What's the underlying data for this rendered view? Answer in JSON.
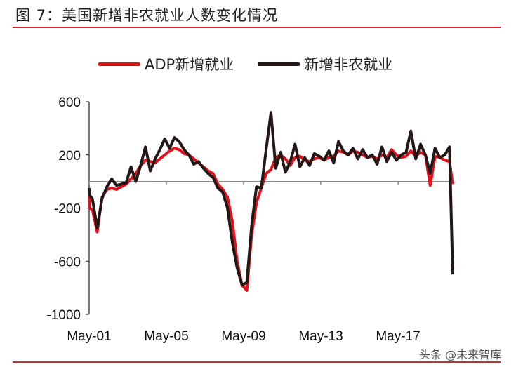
{
  "figure": {
    "title": "图 7：美国新增非农就业人数变化情况",
    "watermark": "头条 @未来智库"
  },
  "legend": {
    "items": [
      {
        "label": "ADP新增就业",
        "color": "#e3101b"
      },
      {
        "label": "新增非农就业",
        "color": "#231815"
      }
    ]
  },
  "chart_data": {
    "type": "line",
    "title": "图 7：美国新增非农就业人数变化情况",
    "xlabel": "",
    "ylabel": "",
    "ylim": [
      -1000,
      600
    ],
    "yticks": [
      600,
      200,
      -200,
      -600,
      -1000
    ],
    "xtick_labels": [
      "May-01",
      "May-05",
      "May-09",
      "May-13",
      "May-17"
    ],
    "grid": false,
    "legend_position": "top",
    "x": [
      "2001-01",
      "2001-04",
      "2001-07",
      "2001-10",
      "2002-01",
      "2002-04",
      "2002-07",
      "2002-10",
      "2003-01",
      "2003-04",
      "2003-07",
      "2003-10",
      "2004-01",
      "2004-04",
      "2004-07",
      "2004-10",
      "2005-01",
      "2005-04",
      "2005-07",
      "2005-10",
      "2006-01",
      "2006-04",
      "2006-07",
      "2006-10",
      "2007-01",
      "2007-04",
      "2007-07",
      "2007-10",
      "2008-01",
      "2008-04",
      "2008-07",
      "2008-10",
      "2009-01",
      "2009-04",
      "2009-07",
      "2009-10",
      "2010-01",
      "2010-04",
      "2010-07",
      "2010-10",
      "2011-01",
      "2011-04",
      "2011-07",
      "2011-10",
      "2012-01",
      "2012-04",
      "2012-07",
      "2012-10",
      "2013-01",
      "2013-04",
      "2013-07",
      "2013-10",
      "2014-01",
      "2014-04",
      "2014-07",
      "2014-10",
      "2015-01",
      "2015-04",
      "2015-07",
      "2015-10",
      "2016-01",
      "2016-04",
      "2016-07",
      "2016-10",
      "2017-01",
      "2017-04",
      "2017-07",
      "2017-10",
      "2018-01",
      "2018-04",
      "2018-07",
      "2018-10",
      "2019-01",
      "2019-04",
      "2019-07",
      "2019-10",
      "2020-01",
      "2020-03"
    ],
    "series": [
      {
        "name": "ADP新增就业",
        "color": "#e3101b",
        "values": [
          -100,
          -200,
          -210,
          -380,
          -120,
          -60,
          -50,
          -60,
          -40,
          -20,
          20,
          60,
          120,
          160,
          150,
          140,
          170,
          200,
          230,
          250,
          240,
          210,
          200,
          170,
          140,
          110,
          80,
          60,
          -20,
          -60,
          -120,
          -300,
          -600,
          -780,
          -820,
          -400,
          -160,
          -50,
          60,
          90,
          180,
          200,
          170,
          120,
          180,
          190,
          160,
          150,
          170,
          180,
          160,
          180,
          190,
          230,
          220,
          200,
          230,
          220,
          200,
          180,
          190,
          170,
          200,
          180,
          240,
          200,
          180,
          190,
          230,
          190,
          220,
          200,
          -30,
          190,
          180,
          160,
          150,
          -20
        ]
      },
      {
        "name": "新增非农就业",
        "color": "#231815",
        "values": [
          -50,
          -100,
          -130,
          -350,
          -130,
          -40,
          20,
          -30,
          -20,
          -10,
          110,
          0,
          120,
          260,
          80,
          170,
          240,
          320,
          250,
          330,
          300,
          240,
          200,
          130,
          150,
          100,
          60,
          30,
          -50,
          -80,
          -200,
          -460,
          -650,
          -780,
          -760,
          -330,
          -40,
          -50,
          240,
          520,
          100,
          220,
          70,
          150,
          280,
          110,
          180,
          120,
          210,
          190,
          160,
          230,
          140,
          300,
          230,
          200,
          250,
          170,
          240,
          180,
          200,
          130,
          260,
          150,
          220,
          160,
          200,
          220,
          380,
          170,
          280,
          200,
          60,
          250,
          180,
          200,
          260,
          -700
        ]
      }
    ]
  },
  "axes": {
    "y_labels": [
      "600",
      "200",
      "-200",
      "-600",
      "-1000"
    ],
    "x_labels": [
      "May-01",
      "May-05",
      "May-09",
      "May-13",
      "May-17"
    ]
  }
}
